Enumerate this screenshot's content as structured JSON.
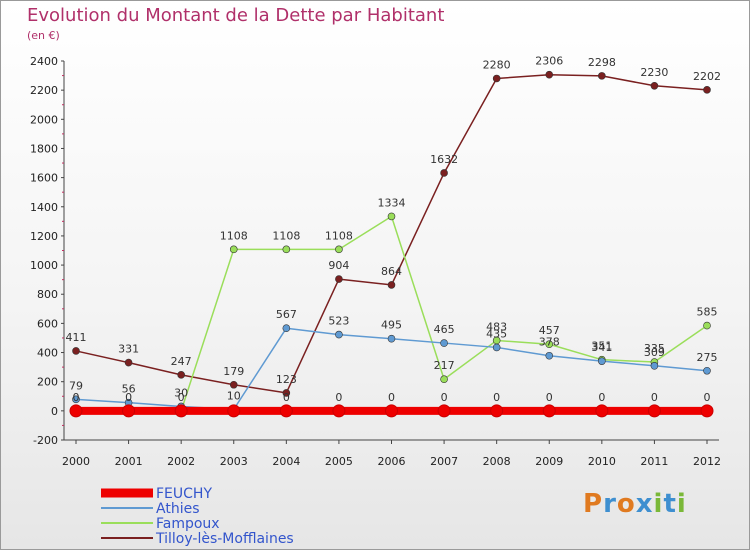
{
  "header": {
    "title": "Evolution du Montant de la Dette par Habitant",
    "unit": "(en €)"
  },
  "logo": {
    "text": "Proxiti"
  },
  "chart_data": {
    "type": "line",
    "title": "Evolution du Montant de la Dette par Habitant",
    "subtitle": "(en €)",
    "xlabel": "",
    "ylabel": "",
    "ylim": [
      -200,
      2400
    ],
    "yticks": [
      -200,
      0,
      200,
      400,
      600,
      800,
      1000,
      1200,
      1400,
      1600,
      1800,
      2000,
      2200,
      2400
    ],
    "grid": false,
    "legend_position": "bottom-left",
    "x": [
      "2000",
      "2001",
      "2002",
      "2003",
      "2004",
      "2005",
      "2006",
      "2007",
      "2008",
      "2009",
      "2010",
      "2011",
      "2012"
    ],
    "series": [
      {
        "name": "FEUCHY",
        "color": "#ee0000",
        "values": [
          0,
          0,
          0,
          0,
          0,
          0,
          0,
          0,
          0,
          0,
          0,
          0,
          0
        ],
        "labels": [
          "",
          "",
          "",
          "",
          "0",
          "0",
          "0",
          "0",
          "0",
          "0",
          "0",
          "0",
          "0"
        ]
      },
      {
        "name": "Athies",
        "color": "#5f9ad2",
        "values": [
          79,
          56,
          30,
          10,
          567,
          523,
          495,
          465,
          435,
          378,
          341,
          309,
          275
        ],
        "labels": [
          "79",
          "56",
          "30",
          "10",
          "567",
          "523",
          "495",
          "465",
          "435",
          "378",
          "341",
          "309",
          "275"
        ]
      },
      {
        "name": "Fampoux",
        "color": "#9ade5a",
        "values": [
          0,
          0,
          0,
          1108,
          1108,
          1108,
          1334,
          217,
          483,
          457,
          351,
          335,
          585
        ],
        "labels": [
          "0",
          "0",
          "0",
          "1108",
          "1108",
          "1108",
          "1334",
          "217",
          "483",
          "457",
          "351",
          "335",
          "585"
        ]
      },
      {
        "name": "Tilloy-lès-Mofflaines",
        "color": "#7a2020",
        "values": [
          411,
          331,
          247,
          179,
          123,
          904,
          864,
          1632,
          2280,
          2306,
          2298,
          2230,
          2202
        ],
        "labels": [
          "411",
          "331",
          "247",
          "179",
          "123",
          "904",
          "864",
          "1632",
          "2280",
          "2306",
          "2298",
          "2230",
          "2202"
        ]
      }
    ]
  }
}
